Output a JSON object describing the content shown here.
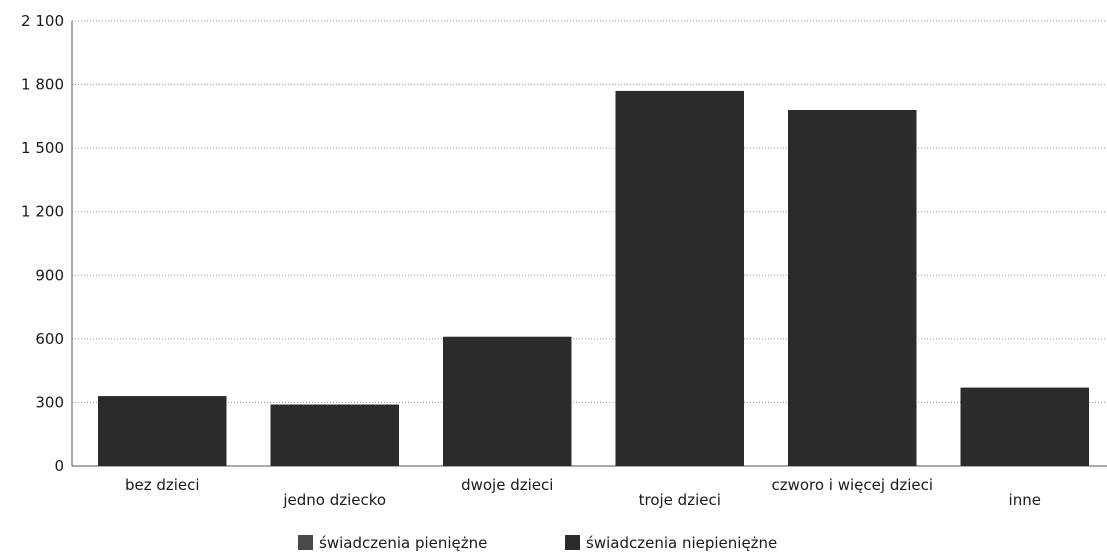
{
  "chart_data": {
    "type": "bar",
    "categories": [
      "bez dzieci",
      "jedno dziecko",
      "dwoje dzieci",
      "troje dzieci",
      "czworo i więcej dzieci",
      "inne"
    ],
    "series": [
      {
        "name": "świadczenia pieniężne",
        "values": [
          0,
          0,
          0,
          0,
          0,
          0
        ],
        "color": "#4a4a4a"
      },
      {
        "name": "świadczenia niepieniężne",
        "values": [
          330,
          290,
          610,
          1770,
          1680,
          370
        ],
        "color": "#2b2b2b"
      }
    ],
    "yticks": [
      "0",
      "300",
      "600",
      "900",
      "1 200",
      "1 500",
      "1 800",
      "2 100"
    ],
    "ylim": [
      0,
      2100
    ],
    "title": "",
    "xlabel": "",
    "ylabel": "",
    "grid": true,
    "legend_position": "bottom"
  }
}
